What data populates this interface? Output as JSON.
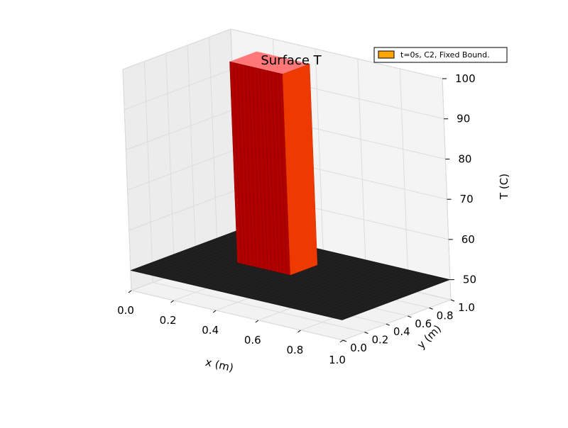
{
  "chart_data": {
    "type": "surface3d",
    "title": "Surface T",
    "xlabel": "x (m)",
    "ylabel": "y (m)",
    "zlabel": "T (C)",
    "xlim": [
      0.0,
      1.0
    ],
    "ylim": [
      0.0,
      1.0
    ],
    "zlim": [
      45,
      100
    ],
    "x_ticks": [
      "0.0",
      "0.2",
      "0.4",
      "0.6",
      "0.8",
      "1.0"
    ],
    "y_ticks": [
      "0.0",
      "0.2",
      "0.4",
      "0.6",
      "0.8",
      "1.0"
    ],
    "z_ticks": [
      "50",
      "60",
      "70",
      "80",
      "90",
      "100"
    ],
    "grid": true,
    "legend": {
      "position": "top-right",
      "entries": [
        "t=0s, C2, Fixed Bound."
      ]
    },
    "surface": {
      "base_value": 50,
      "peak_value": 100,
      "peak_region": {
        "x": [
          0.25,
          0.5
        ],
        "y": [
          0.5,
          0.75
        ]
      },
      "colormap": "hot"
    },
    "colors": {
      "legend_swatch": "#ffa500",
      "base_surface": "#1c1c1c",
      "front_face": "#b00000",
      "side_face": "#ee3a00",
      "top_face": "#ff7777"
    }
  }
}
